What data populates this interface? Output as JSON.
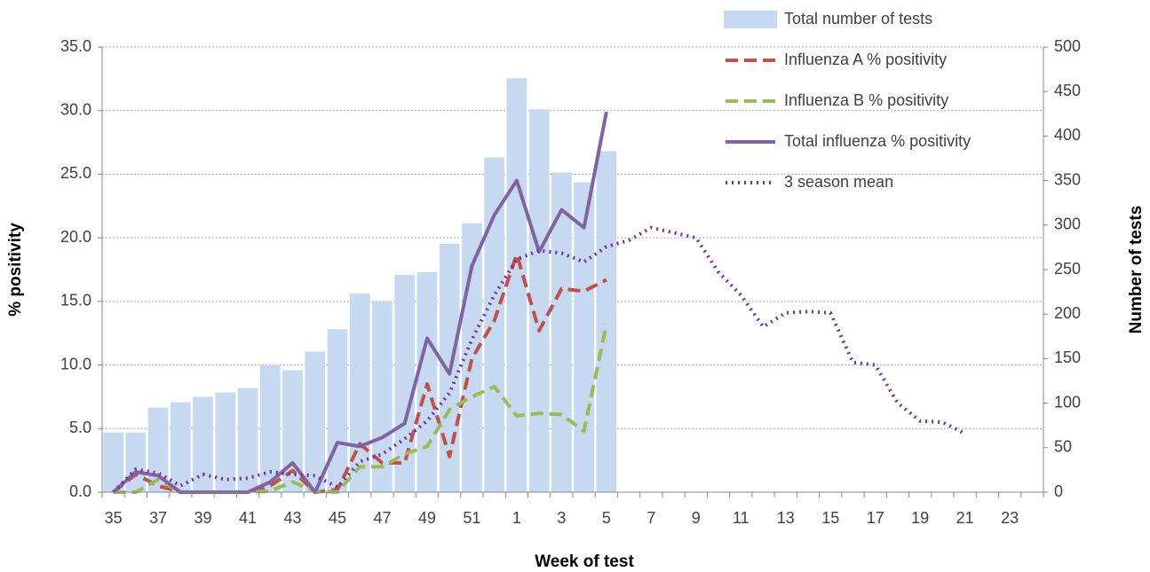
{
  "chart_data": {
    "type": "combo",
    "x_label": "Week of test",
    "y_label": "% positivity",
    "y2_label": "Number of tests",
    "categories": [
      "35",
      null,
      "37",
      null,
      "39",
      null,
      "41",
      null,
      "43",
      null,
      "45",
      null,
      "47",
      null,
      "49",
      null,
      "51",
      null,
      "1",
      null,
      "3",
      null,
      "5",
      null,
      "7",
      null,
      "9",
      null,
      "11",
      null,
      "13",
      null,
      "15",
      null,
      "17",
      null,
      "19",
      null,
      "21",
      null,
      "23",
      null
    ],
    "ylim": [
      0,
      35
    ],
    "yticks": [
      {
        "value": 0,
        "label": "0.0"
      },
      {
        "value": 5,
        "label": "5.0"
      },
      {
        "value": 10,
        "label": "10.0"
      },
      {
        "value": 15,
        "label": "15.0"
      },
      {
        "value": 20,
        "label": "20.0"
      },
      {
        "value": 25,
        "label": "25.0"
      },
      {
        "value": 30,
        "label": "30.0"
      },
      {
        "value": 35,
        "label": "35.0"
      }
    ],
    "y2lim": [
      0,
      500
    ],
    "y2ticks": [
      0,
      50,
      100,
      150,
      200,
      250,
      300,
      350,
      400,
      450,
      500
    ],
    "grid": true,
    "legend": "top-right",
    "series": [
      {
        "name": "Total number of tests",
        "type": "bar",
        "axis": "y2",
        "color": "#c6d9f1",
        "values": [
          67,
          67,
          95,
          101,
          107,
          112,
          117,
          143,
          137,
          158,
          183,
          223,
          214,
          244,
          247,
          279,
          302,
          376,
          465,
          430,
          359,
          348,
          383,
          null,
          null,
          null,
          null,
          null,
          null,
          null,
          null,
          null,
          null,
          null,
          null,
          null,
          null,
          null,
          null,
          null,
          null,
          null
        ]
      },
      {
        "name": "Influenza A % positivity",
        "type": "line",
        "line_style": "dashed",
        "color": "#c0504d",
        "values": [
          0,
          1.4,
          0.5,
          0,
          0,
          0,
          0,
          0.5,
          1.7,
          0,
          0.2,
          3.8,
          2.3,
          2.3,
          8.5,
          2.8,
          10.5,
          13.5,
          18.7,
          12.7,
          16.0,
          15.8,
          16.7,
          null,
          null,
          null,
          null,
          null,
          null,
          null,
          null,
          null,
          null,
          null,
          null,
          null,
          null,
          null,
          null,
          null,
          null,
          null
        ]
      },
      {
        "name": "Influenza B % positivity",
        "type": "line",
        "line_style": "dashed",
        "color": "#9bbb59",
        "values": [
          0,
          0,
          1.0,
          0,
          0,
          0,
          0,
          0.1,
          0.8,
          0.1,
          0,
          2.0,
          2.0,
          3.0,
          3.6,
          6.5,
          7.5,
          8.3,
          6.0,
          6.2,
          6.1,
          4.8,
          13.2,
          null,
          null,
          null,
          null,
          null,
          null,
          null,
          null,
          null,
          null,
          null,
          null,
          null,
          null,
          null,
          null,
          null,
          null,
          null
        ]
      },
      {
        "name": "Total influenza % positivity",
        "type": "line",
        "line_style": "solid",
        "color": "#8064a2",
        "values": [
          0,
          1.6,
          1.3,
          0,
          0,
          0,
          0,
          0.8,
          2.3,
          0,
          3.9,
          3.6,
          4.3,
          5.4,
          12.1,
          9.3,
          17.8,
          21.8,
          24.5,
          18.9,
          22.2,
          20.8,
          29.9,
          null,
          null,
          null,
          null,
          null,
          null,
          null,
          null,
          null,
          null,
          null,
          null,
          null,
          null,
          null,
          null,
          null,
          null,
          null
        ]
      },
      {
        "name": "3 season mean",
        "type": "line",
        "line_style": "dotted",
        "color": "#7030a0",
        "values": [
          0,
          1.8,
          1.5,
          0.5,
          1.4,
          1.0,
          1.1,
          1.6,
          1.4,
          1.3,
          0.4,
          2.4,
          3.0,
          4.2,
          5.6,
          7.8,
          12.0,
          15.5,
          18.3,
          19.0,
          18.8,
          18.1,
          19.3,
          19.8,
          20.8,
          20.4,
          20.0,
          17.3,
          15.5,
          13.0,
          14.1,
          14.2,
          14.1,
          10.2,
          10.0,
          7.0,
          5.6,
          5.5,
          4.6,
          null,
          null,
          null
        ]
      }
    ]
  }
}
